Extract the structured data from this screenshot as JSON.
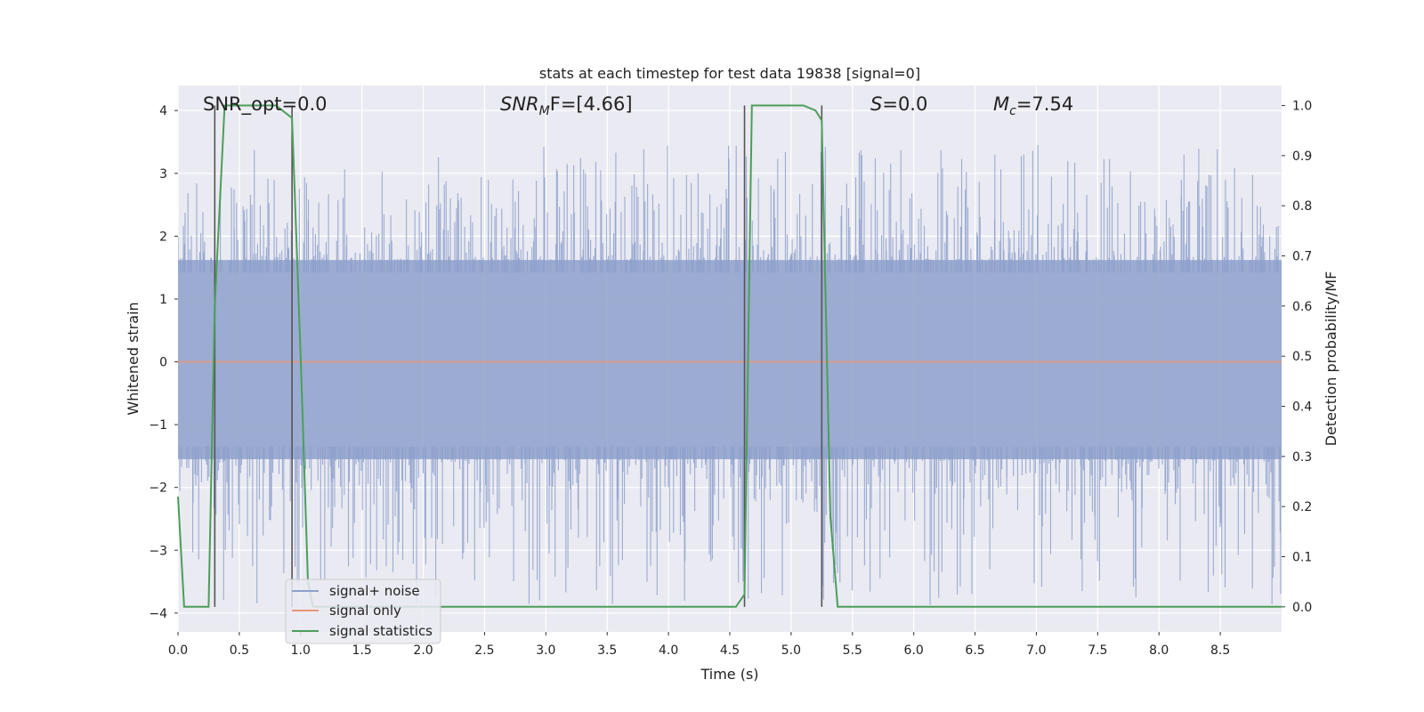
{
  "chart_data": {
    "type": "line",
    "title": "stats at each timestep for test data 19838 [signal=0]",
    "xlabel": "Time (s)",
    "ylabel": "Whitened strain",
    "ylabel_right": "Detection probability/MF",
    "xlim": [
      0.0,
      9.0
    ],
    "ylim": [
      -4.3,
      4.4
    ],
    "ylim_right": [
      -0.05,
      1.04
    ],
    "xticks": [
      0.0,
      0.5,
      1.0,
      1.5,
      2.0,
      2.5,
      3.0,
      3.5,
      4.0,
      4.5,
      5.0,
      5.5,
      6.0,
      6.5,
      7.0,
      7.5,
      8.0,
      8.5
    ],
    "xtick_labels": [
      "0.0",
      "0.5",
      "1.0",
      "1.5",
      "2.0",
      "2.5",
      "3.0",
      "3.5",
      "4.0",
      "4.5",
      "5.0",
      "5.5",
      "6.0",
      "6.5",
      "7.0",
      "7.5",
      "8.0",
      "8.5"
    ],
    "yticks": [
      4,
      3,
      2,
      1,
      0,
      -1,
      -2,
      -3,
      -4
    ],
    "ytick_labels": [
      "4",
      "3",
      "2",
      "1",
      "0",
      "−1",
      "−2",
      "−3",
      "−4"
    ],
    "yticks_right": [
      1.0,
      0.9,
      0.8,
      0.7,
      0.6,
      0.5,
      0.4,
      0.3,
      0.2,
      0.1,
      0.0
    ],
    "ytick_right_labels": [
      "1.0",
      "0.9",
      "0.8",
      "0.7",
      "0.6",
      "0.5",
      "0.4",
      "0.3",
      "0.2",
      "0.1",
      "0.0"
    ],
    "grid": true,
    "annotations": {
      "snr_opt": "SNR_opt=0.0",
      "snr_mf_prefix": "SNR",
      "snr_mf_sub": "M",
      "snr_mf_suffix": "F=[4.66]",
      "s_label": "S",
      "s_value": "=0.0",
      "mc_label": "M",
      "mc_sub": "c",
      "mc_value": "=7.54"
    },
    "series": [
      {
        "name": "signal+ noise",
        "color": "#8da0cb",
        "axis": "left",
        "noise_envelope": {
          "t_start": 0.0,
          "t_end": 9.0,
          "dense_upper": 1.62,
          "dense_lower": -1.55,
          "spike_max_upper": 3.46,
          "spike_min_lower": -3.9
        }
      },
      {
        "name": "signal only",
        "color": "#e8967a",
        "axis": "left",
        "x": [
          0.0,
          9.0
        ],
        "values": [
          0.0,
          0.0
        ]
      },
      {
        "name": "signal statistics",
        "color": "#4c9e5a",
        "axis": "right",
        "x": [
          0.0,
          0.05,
          0.25,
          0.3,
          0.38,
          0.5,
          0.65,
          0.8,
          0.93,
          1.0,
          1.06,
          1.1,
          1.5,
          2.0,
          3.0,
          4.0,
          4.55,
          4.62,
          4.68,
          4.8,
          5.0,
          5.1,
          5.2,
          5.25,
          5.32,
          5.38,
          5.5,
          6.0,
          7.0,
          8.0,
          9.0
        ],
        "values": [
          0.22,
          0.0,
          0.0,
          0.6,
          1.0,
          1.0,
          1.0,
          1.0,
          0.975,
          0.5,
          0.05,
          0.0,
          0.0,
          0.0,
          0.0,
          0.0,
          0.0,
          0.025,
          1.0,
          1.0,
          1.0,
          1.0,
          0.99,
          0.97,
          0.18,
          0.0,
          0.0,
          0.0,
          0.0,
          0.0,
          0.0
        ]
      }
    ],
    "vertical_markers": {
      "x": [
        0.3,
        0.93,
        4.62,
        5.25
      ],
      "y_range_right": [
        0.0,
        1.0
      ],
      "color": "#555555"
    },
    "legend": {
      "position": "lower-left",
      "entries": [
        "signal+ noise",
        "signal only",
        "signal statistics"
      ]
    },
    "colors": {
      "plot_background": "#eaeaf2",
      "grid": "#ffffff"
    }
  }
}
